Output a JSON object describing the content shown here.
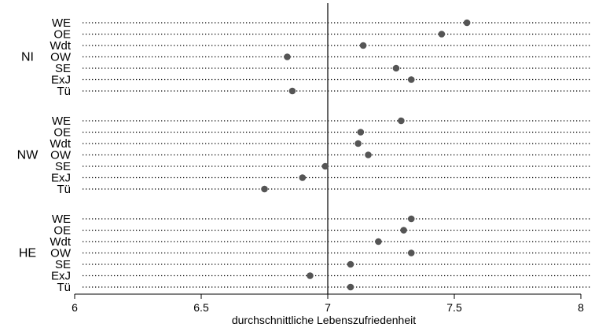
{
  "chart_data": {
    "type": "dot",
    "title": "",
    "xlabel": "durchschnittliche Lebenszufriedenheit",
    "xlim": [
      6,
      8
    ],
    "xticks": [
      "6",
      "6.5",
      "7",
      "7.5",
      "8"
    ],
    "reference_line": 7,
    "grid": "dotted horizontal per row",
    "groups": [
      {
        "name": "NI",
        "rows": [
          {
            "label": "WE",
            "value": 7.55
          },
          {
            "label": "OE",
            "value": 7.45
          },
          {
            "label": "Wdt",
            "value": 7.14
          },
          {
            "label": "OW",
            "value": 6.84
          },
          {
            "label": "SE",
            "value": 7.27
          },
          {
            "label": "ExJ",
            "value": 7.33
          },
          {
            "label": "Tü",
            "value": 6.86
          }
        ]
      },
      {
        "name": "NW",
        "rows": [
          {
            "label": "WE",
            "value": 7.29
          },
          {
            "label": "OE",
            "value": 7.13
          },
          {
            "label": "Wdt",
            "value": 7.12
          },
          {
            "label": "OW",
            "value": 7.16
          },
          {
            "label": "SE",
            "value": 6.99
          },
          {
            "label": "ExJ",
            "value": 6.9
          },
          {
            "label": "Tü",
            "value": 6.75
          }
        ]
      },
      {
        "name": "HE",
        "rows": [
          {
            "label": "WE",
            "value": 7.33
          },
          {
            "label": "OE",
            "value": 7.3
          },
          {
            "label": "Wdt",
            "value": 7.2
          },
          {
            "label": "OW",
            "value": 7.33
          },
          {
            "label": "SE",
            "value": 7.09
          },
          {
            "label": "ExJ",
            "value": 6.93
          },
          {
            "label": "Tü",
            "value": 7.09
          }
        ]
      }
    ],
    "colors": {
      "marker": "#555555",
      "gridline": "#000000",
      "axis": "#000000",
      "background": "#ffffff"
    }
  }
}
